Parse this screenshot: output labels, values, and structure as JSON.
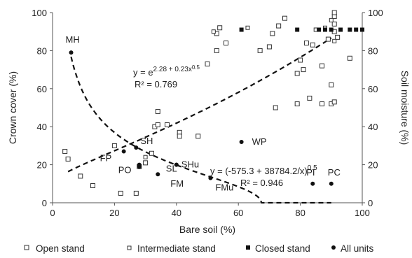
{
  "chart_data": {
    "type": "scatter",
    "xlabel": "Bare soil (%)",
    "ylabel_left": "Crown cover (%)",
    "ylabel_right": "Soil moisture (%)",
    "xlim": [
      0,
      100
    ],
    "ylim_left": [
      0,
      100
    ],
    "ylim_right": [
      0,
      100
    ],
    "xticks": [
      "0",
      "20",
      "40",
      "60",
      "80",
      "100"
    ],
    "yticks_left": [
      "0",
      "20",
      "40",
      "60",
      "80",
      "100"
    ],
    "yticks_right": [
      "0",
      "20",
      "40",
      "60",
      "80",
      "100"
    ],
    "grid": false,
    "legend_position": "bottom",
    "series": [
      {
        "name": "Open stand",
        "marker": "open-square",
        "axis": "left",
        "points": [
          [
            4,
            27
          ],
          [
            5,
            23
          ],
          [
            9,
            14
          ],
          [
            13,
            9
          ],
          [
            20,
            30
          ],
          [
            22,
            5
          ],
          [
            27,
            5
          ],
          [
            28,
            19
          ],
          [
            30,
            21
          ],
          [
            32,
            26
          ],
          [
            33,
            40
          ],
          [
            34,
            48
          ],
          [
            34,
            41
          ],
          [
            37,
            41
          ],
          [
            41,
            37
          ],
          [
            41,
            35
          ],
          [
            47,
            35
          ],
          [
            50,
            73
          ],
          [
            53,
            80
          ],
          [
            53,
            89
          ],
          [
            54,
            92
          ],
          [
            56,
            84
          ],
          [
            67,
            80
          ],
          [
            70,
            82
          ],
          [
            71,
            89
          ],
          [
            72,
            50
          ],
          [
            73,
            93
          ],
          [
            75,
            97
          ],
          [
            79,
            52
          ],
          [
            79,
            68
          ],
          [
            80,
            75
          ],
          [
            81,
            70
          ],
          [
            82,
            84
          ],
          [
            83,
            55
          ],
          [
            84,
            83
          ],
          [
            87,
            52
          ],
          [
            87,
            72
          ],
          [
            89,
            86
          ],
          [
            90,
            52
          ],
          [
            90,
            62
          ],
          [
            91,
            53
          ],
          [
            91,
            90
          ],
          [
            91,
            94
          ],
          [
            91,
            98
          ],
          [
            91,
            100
          ],
          [
            92,
            87
          ],
          [
            96,
            76
          ]
        ]
      },
      {
        "name": "Intermediate stand",
        "marker": "small-open-square",
        "axis": "left",
        "points": [
          [
            30,
            24
          ],
          [
            52,
            90
          ],
          [
            63,
            92
          ],
          [
            85,
            91
          ],
          [
            88,
            92
          ],
          [
            90,
            96
          ],
          [
            91,
            85
          ]
        ]
      },
      {
        "name": "Closed stand",
        "marker": "filled-square",
        "axis": "left",
        "points": [
          [
            61,
            91
          ],
          [
            79,
            91
          ],
          [
            86,
            91
          ],
          [
            88,
            91
          ],
          [
            90,
            91
          ],
          [
            93,
            91
          ],
          [
            96,
            91
          ],
          [
            98,
            91
          ],
          [
            100,
            91
          ]
        ]
      },
      {
        "name": "All units",
        "marker": "filled-circle",
        "axis": "right",
        "points": [
          {
            "x": 6,
            "y": 79,
            "label": "MH"
          },
          {
            "x": 23,
            "y": 27,
            "label": "FP"
          },
          {
            "x": 27,
            "y": 29,
            "label": "SH"
          },
          {
            "x": 28,
            "y": 20,
            "label": "PO"
          },
          {
            "x": 28,
            "y": 19,
            "label": ""
          },
          {
            "x": 34,
            "y": 15,
            "label": "FM"
          },
          {
            "x": 40,
            "y": 20,
            "label": "SL"
          },
          {
            "x": 40,
            "y": 20,
            "label": "SHu"
          },
          {
            "x": 51,
            "y": 13,
            "label": "FMu"
          },
          {
            "x": 61,
            "y": 32,
            "label": "WP"
          },
          {
            "x": 84,
            "y": 10,
            "label": "PI"
          },
          {
            "x": 90,
            "y": 10,
            "label": "PC"
          }
        ]
      }
    ],
    "fits": [
      {
        "axis": "left",
        "equation": "y = e",
        "superscript": "2.28 + 0.23x",
        "superscript_exp": "0.5",
        "r2": "R² = 0.769",
        "formula": "exp(2.28 + 0.23*sqrt(x))",
        "x_range": [
          5,
          90
        ]
      },
      {
        "axis": "right",
        "equation": "y = (-575.3 + 38784.2/x)",
        "exponent": "0.5",
        "r2": "R² = 0.946",
        "formula": "sqrt(-575.3 + 38784.2/x)",
        "x_range": [
          6,
          90
        ]
      }
    ]
  },
  "legend": {
    "open_stand": "Open stand",
    "intermediate_stand": "Intermediate stand",
    "closed_stand": "Closed stand",
    "all_units": "All units"
  }
}
